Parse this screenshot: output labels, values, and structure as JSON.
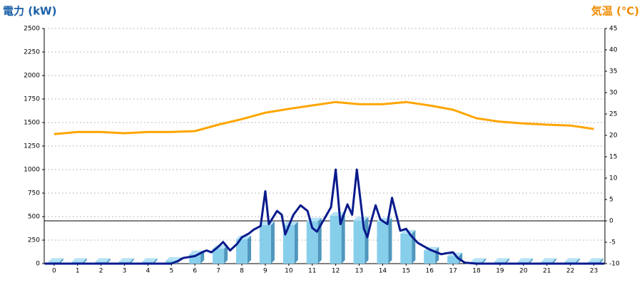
{
  "chart_data": {
    "type": "bar",
    "ytitle": "電力 (kW)",
    "y2title": "気温 (℃)",
    "ytitle_color": "#1a5fa8",
    "y2title_color": "#f08c00",
    "x": [
      0,
      1,
      2,
      3,
      4,
      5,
      6,
      7,
      8,
      9,
      10,
      11,
      12,
      13,
      14,
      15,
      16,
      17,
      18,
      19,
      20,
      21,
      22,
      23
    ],
    "xlim": [
      -0.42,
      23.47
    ],
    "xticks": [
      0,
      1,
      2,
      3,
      4,
      5,
      6,
      7,
      8,
      9,
      10,
      11,
      12,
      13,
      14,
      15,
      16,
      17,
      18,
      19,
      20,
      21,
      22,
      23
    ],
    "ylim": [
      0,
      2500
    ],
    "yticks": [
      0,
      250,
      500,
      750,
      1000,
      1250,
      1500,
      1750,
      2000,
      2250,
      2500
    ],
    "y2lim": [
      -10,
      45
    ],
    "y2ticks": [
      -10,
      -5,
      0,
      5,
      10,
      15,
      20,
      25,
      30,
      35,
      40,
      45
    ],
    "grid": true,
    "series": [
      {
        "type": "bar",
        "color": "#87ceeb",
        "values": [
          20,
          20,
          20,
          20,
          20,
          30,
          100,
          160,
          260,
          410,
          410,
          450,
          510,
          460,
          450,
          320,
          140,
          80,
          20,
          20,
          20,
          20,
          20,
          20
        ]
      },
      {
        "type": "line",
        "color": "#0a1a8c",
        "x": [
          -0.4,
          0,
          1,
          2,
          3,
          4,
          5,
          5.3,
          5.5,
          6,
          6.3,
          6.5,
          6.7,
          7,
          7.2,
          7.5,
          7.8,
          8,
          8.3,
          8.5,
          8.8,
          9,
          9.15,
          9.5,
          9.7,
          9.85,
          10.2,
          10.5,
          10.8,
          11,
          11.2,
          11.5,
          11.8,
          12,
          12.2,
          12.5,
          12.7,
          12.9,
          13.2,
          13.35,
          13.5,
          13.7,
          13.9,
          14.2,
          14.4,
          14.6,
          14.75,
          15,
          15.2,
          15.5,
          16,
          16.5,
          16.7,
          17,
          17.2,
          17.5,
          18,
          19,
          20,
          21,
          22,
          23,
          23.45
        ],
        "values": [
          0,
          0,
          0,
          0,
          0,
          0,
          0,
          30,
          60,
          80,
          120,
          140,
          120,
          180,
          230,
          140,
          210,
          280,
          320,
          360,
          400,
          770,
          420,
          560,
          520,
          310,
          520,
          620,
          560,
          380,
          340,
          470,
          600,
          1000,
          420,
          630,
          520,
          1000,
          370,
          280,
          440,
          620,
          470,
          420,
          700,
          500,
          350,
          370,
          300,
          220,
          150,
          100,
          110,
          120,
          60,
          10,
          0,
          0,
          0,
          0,
          0,
          0,
          0
        ]
      },
      {
        "type": "line",
        "axis": "y2",
        "color": "#ffa500",
        "values": [
          20.3,
          20.8,
          20.8,
          20.5,
          20.8,
          20.8,
          21,
          22.5,
          23.8,
          25.3,
          26.2,
          27,
          27.8,
          27.3,
          27.3,
          27.8,
          27,
          26,
          24,
          23.2,
          22.8,
          22.5,
          22.3,
          21.5
        ]
      }
    ]
  }
}
